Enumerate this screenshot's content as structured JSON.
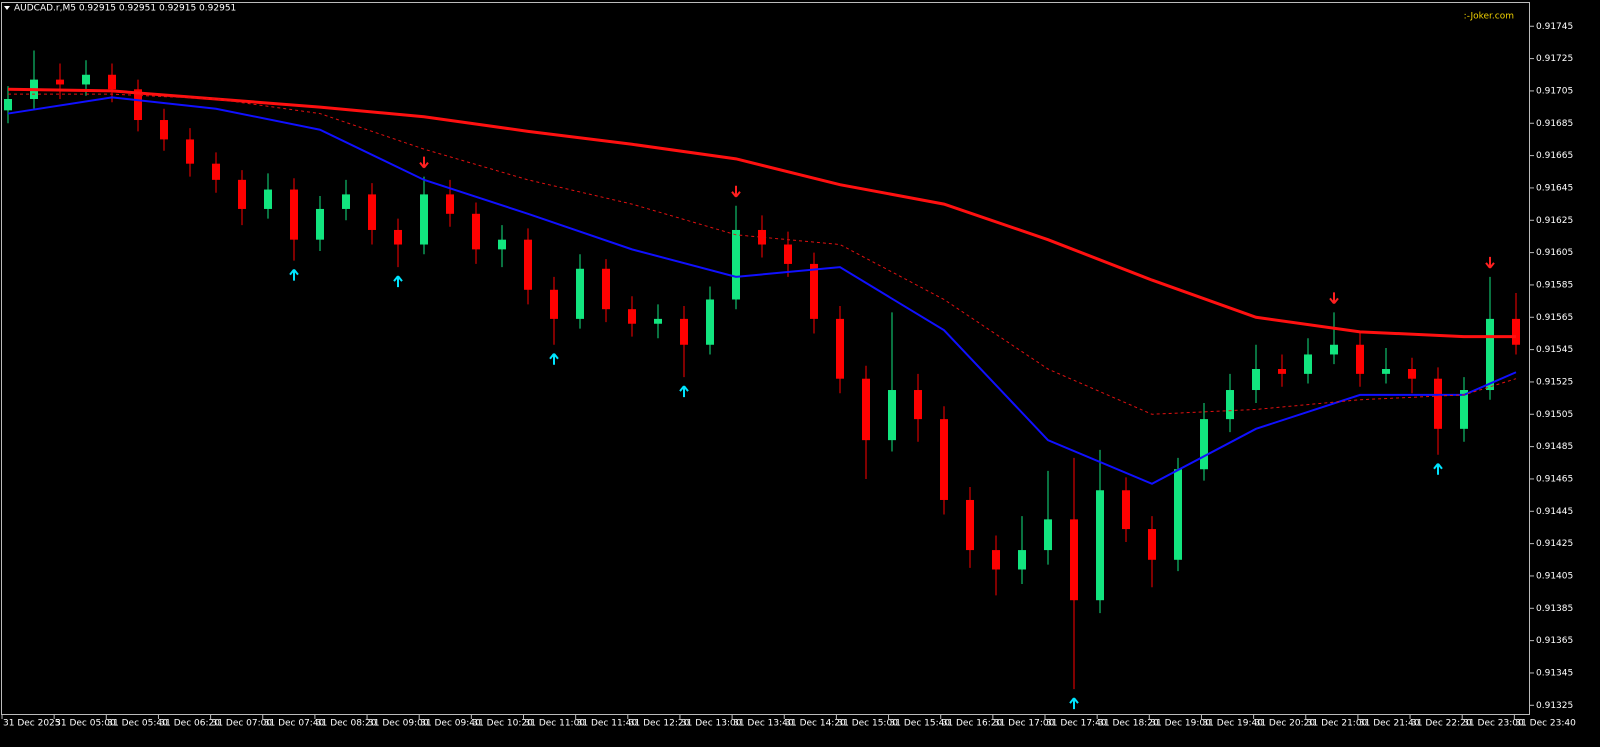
{
  "chart_data": {
    "type": "candlestick",
    "title": "AUDCAD.r,M5  0.92915 0.92951 0.92915 0.92951",
    "watermark": ":-Joker.com",
    "ylim": [
      0.91319,
      0.9176
    ],
    "yticks": [
      0.91745,
      0.91725,
      0.91705,
      0.91685,
      0.91665,
      0.91645,
      0.91625,
      0.91605,
      0.91585,
      0.91565,
      0.91545,
      0.91525,
      0.91505,
      0.91485,
      0.91465,
      0.91445,
      0.91425,
      0.91405,
      0.91385,
      0.91365,
      0.91345,
      0.91325
    ],
    "x_labels": [
      "31 Dec 2025",
      "31 Dec 05:00",
      "31 Dec 05:40",
      "31 Dec 06:20",
      "31 Dec 07:00",
      "31 Dec 07:40",
      "31 Dec 08:20",
      "31 Dec 09:00",
      "31 Dec 09:40",
      "31 Dec 10:20",
      "31 Dec 11:00",
      "31 Dec 11:40",
      "31 Dec 12:20",
      "31 Dec 13:00",
      "31 Dec 13:40",
      "31 Dec 14:20",
      "31 Dec 15:00",
      "31 Dec 15:40",
      "31 Dec 16:20",
      "31 Dec 17:00",
      "31 Dec 17:40",
      "31 Dec 18:20",
      "31 Dec 19:00",
      "31 Dec 19:40",
      "31 Dec 20:20",
      "31 Dec 21:00",
      "31 Dec 21:40",
      "31 Dec 22:20",
      "31 Dec 23:00",
      "31 Dec 23:40"
    ],
    "up_color": "#12e57f",
    "down_color": "#ff0000",
    "open": [
      0.91693,
      0.917,
      0.91712,
      0.91709,
      0.91715,
      0.91706,
      0.91687,
      0.91675,
      0.9166,
      0.9165,
      0.91632,
      0.91644,
      0.91613,
      0.91632,
      0.91641,
      0.91619,
      0.9161,
      0.91641,
      0.91629,
      0.91607,
      0.91613,
      0.91582,
      0.91564,
      0.91595,
      0.9157,
      0.91561,
      0.91564,
      0.91548,
      0.91576,
      0.91619,
      0.9161,
      0.91598,
      0.91564,
      0.91527,
      0.91489,
      0.9152,
      0.91502,
      0.91452,
      0.91421,
      0.91409,
      0.91421,
      0.9144,
      0.9139,
      0.91458,
      0.91434,
      0.91415,
      0.91471,
      0.91502,
      0.9152,
      0.91533,
      0.9153,
      0.91542,
      0.91548,
      0.9153,
      0.91533,
      0.91527,
      0.91496,
      0.9152,
      0.91564
    ],
    "high": [
      0.91708,
      0.9173,
      0.91722,
      0.91724,
      0.91722,
      0.91712,
      0.91694,
      0.91682,
      0.91667,
      0.91656,
      0.91654,
      0.91651,
      0.9164,
      0.9165,
      0.91648,
      0.91626,
      0.91652,
      0.9165,
      0.91636,
      0.91622,
      0.9162,
      0.9159,
      0.91604,
      0.91601,
      0.91578,
      0.91573,
      0.91572,
      0.91584,
      0.91634,
      0.91628,
      0.91618,
      0.91605,
      0.91572,
      0.91535,
      0.91568,
      0.9153,
      0.9151,
      0.9146,
      0.9143,
      0.91442,
      0.9147,
      0.91478,
      0.91483,
      0.91466,
      0.91442,
      0.91478,
      0.91512,
      0.9153,
      0.91548,
      0.91542,
      0.91552,
      0.91568,
      0.91556,
      0.91546,
      0.9154,
      0.91534,
      0.91528,
      0.9159,
      0.9158
    ],
    "low": [
      0.91685,
      0.91694,
      0.917,
      0.91702,
      0.91698,
      0.9168,
      0.91668,
      0.91652,
      0.91642,
      0.91622,
      0.91626,
      0.916,
      0.91606,
      0.91625,
      0.9161,
      0.91596,
      0.91604,
      0.91621,
      0.91598,
      0.91596,
      0.91573,
      0.91548,
      0.91558,
      0.91562,
      0.91553,
      0.91552,
      0.91528,
      0.91542,
      0.9157,
      0.91602,
      0.9159,
      0.91555,
      0.91518,
      0.91465,
      0.91482,
      0.91488,
      0.91443,
      0.9141,
      0.91393,
      0.914,
      0.91412,
      0.91335,
      0.91382,
      0.91426,
      0.91398,
      0.91408,
      0.91464,
      0.91494,
      0.91512,
      0.91522,
      0.91524,
      0.91536,
      0.91522,
      0.91524,
      0.91518,
      0.9148,
      0.91488,
      0.91514,
      0.91542
    ],
    "close": [
      0.917,
      0.91712,
      0.91709,
      0.91715,
      0.91706,
      0.91687,
      0.91675,
      0.9166,
      0.9165,
      0.91632,
      0.91644,
      0.91613,
      0.91632,
      0.91641,
      0.91619,
      0.9161,
      0.91641,
      0.91629,
      0.91607,
      0.91613,
      0.91582,
      0.91564,
      0.91595,
      0.9157,
      0.91561,
      0.91564,
      0.91548,
      0.91576,
      0.91619,
      0.9161,
      0.91598,
      0.91564,
      0.91527,
      0.91489,
      0.9152,
      0.91502,
      0.91452,
      0.91421,
      0.91409,
      0.91421,
      0.9144,
      0.9139,
      0.91458,
      0.91434,
      0.91415,
      0.91471,
      0.91502,
      0.9152,
      0.91533,
      0.9153,
      0.91542,
      0.91548,
      0.9153,
      0.91533,
      0.91527,
      0.91496,
      0.9152,
      0.91564,
      0.91548
    ],
    "lines": [
      {
        "color": "#ff1010",
        "width": 3,
        "dash": "none",
        "x": [
          0,
          4,
          8,
          12,
          16,
          20,
          24,
          28,
          32,
          36,
          40,
          44,
          48,
          52,
          56,
          58
        ],
        "values": [
          0.91706,
          0.91705,
          0.917,
          0.91695,
          0.91689,
          0.9168,
          0.91672,
          0.91663,
          0.91647,
          0.91635,
          0.91613,
          0.91588,
          0.91565,
          0.91556,
          0.91553,
          0.91553
        ]
      },
      {
        "color": "#1010ff",
        "width": 2,
        "dash": "none",
        "x": [
          0,
          4,
          8,
          12,
          16,
          20,
          24,
          28,
          32,
          36,
          40,
          44,
          48,
          52,
          56,
          58
        ],
        "values": [
          0.91691,
          0.91701,
          0.91694,
          0.91681,
          0.9165,
          0.91629,
          0.91607,
          0.9159,
          0.91596,
          0.91557,
          0.91489,
          0.91462,
          0.91496,
          0.91517,
          0.91517,
          0.91531
        ]
      },
      {
        "color": "#e01010",
        "width": 1,
        "dash": "3 3",
        "x": [
          0,
          4,
          8,
          12,
          16,
          20,
          24,
          28,
          32,
          36,
          40,
          44,
          48,
          52,
          56,
          58
        ],
        "values": [
          0.91703,
          0.91703,
          0.917,
          0.91691,
          0.91669,
          0.9165,
          0.91635,
          0.91616,
          0.9161,
          0.91576,
          0.91533,
          0.91505,
          0.91508,
          0.91514,
          0.91517,
          0.91527
        ]
      }
    ],
    "buy_signals": [
      11,
      15,
      21,
      26,
      41,
      55
    ],
    "sell_signals": [
      16,
      28,
      51,
      57
    ],
    "buy_color": "#00e5ff",
    "sell_color": "#ff2020"
  }
}
